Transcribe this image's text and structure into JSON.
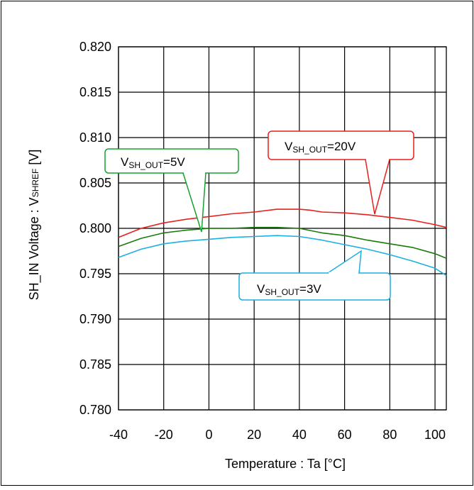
{
  "chart_data": {
    "type": "line",
    "xlabel": "Temperature : Ta [°C]",
    "ylabel_parts": [
      "SH_IN Voltage : V",
      "SHREF",
      " [V]"
    ],
    "xlim": [
      -40,
      105
    ],
    "ylim": [
      0.78,
      0.82
    ],
    "x_ticks": [
      -40,
      -20,
      0,
      20,
      40,
      60,
      80,
      100
    ],
    "x_tick_labels": [
      "-40",
      "-20",
      "0",
      "20",
      "40",
      "60",
      "80",
      "100"
    ],
    "y_ticks": [
      0.78,
      0.785,
      0.79,
      0.795,
      0.8,
      0.805,
      0.81,
      0.815,
      0.82
    ],
    "y_tick_labels": [
      "0.780",
      "0.785",
      "0.790",
      "0.795",
      "0.800",
      "0.805",
      "0.810",
      "0.815",
      "0.820"
    ],
    "grid": true,
    "series": [
      {
        "key": "20v",
        "color": "#e8201c",
        "x": [
          -40,
          -30,
          -20,
          -10,
          0,
          10,
          20,
          30,
          40,
          45,
          50,
          60,
          70,
          80,
          90,
          100,
          105
        ],
        "y": [
          0.799,
          0.8,
          0.8006,
          0.801,
          0.8013,
          0.8016,
          0.8018,
          0.8021,
          0.8021,
          0.802,
          0.8018,
          0.8017,
          0.8015,
          0.8012,
          0.8009,
          0.8004,
          0.8001
        ]
      },
      {
        "key": "5v",
        "color": "#1a7a0a",
        "x": [
          -40,
          -30,
          -20,
          -10,
          0,
          10,
          20,
          30,
          40,
          50,
          60,
          70,
          80,
          90,
          100,
          105
        ],
        "y": [
          0.798,
          0.7989,
          0.7995,
          0.7998,
          0.8,
          0.8,
          0.8001,
          0.8001,
          0.8,
          0.7995,
          0.7992,
          0.7987,
          0.7983,
          0.7979,
          0.7972,
          0.7967
        ]
      },
      {
        "key": "3v",
        "color": "#1ab0e0",
        "x": [
          -40,
          -30,
          -20,
          -10,
          0,
          10,
          20,
          30,
          40,
          50,
          60,
          70,
          80,
          90,
          100,
          105
        ],
        "y": [
          0.7968,
          0.7977,
          0.7983,
          0.7986,
          0.7988,
          0.799,
          0.7991,
          0.7992,
          0.7991,
          0.7987,
          0.7982,
          0.7977,
          0.7971,
          0.7964,
          0.7956,
          0.7948
        ]
      }
    ],
    "annotations": [
      {
        "key": "5v",
        "text_main": "V",
        "text_sub": "SH_OUT",
        "text_tail": "=5V",
        "color": "#1aa030",
        "fill": "#ffffff"
      },
      {
        "key": "20v",
        "text_main": "V",
        "text_sub": "SH_OUT",
        "text_tail": "=20V",
        "color": "#e8201c",
        "fill": "#ffffff"
      },
      {
        "key": "3v",
        "text_main": "V",
        "text_sub": "SH_OUT",
        "text_tail": "=3V",
        "color": "#1ab0e0",
        "fill": "#ffffff"
      }
    ]
  }
}
